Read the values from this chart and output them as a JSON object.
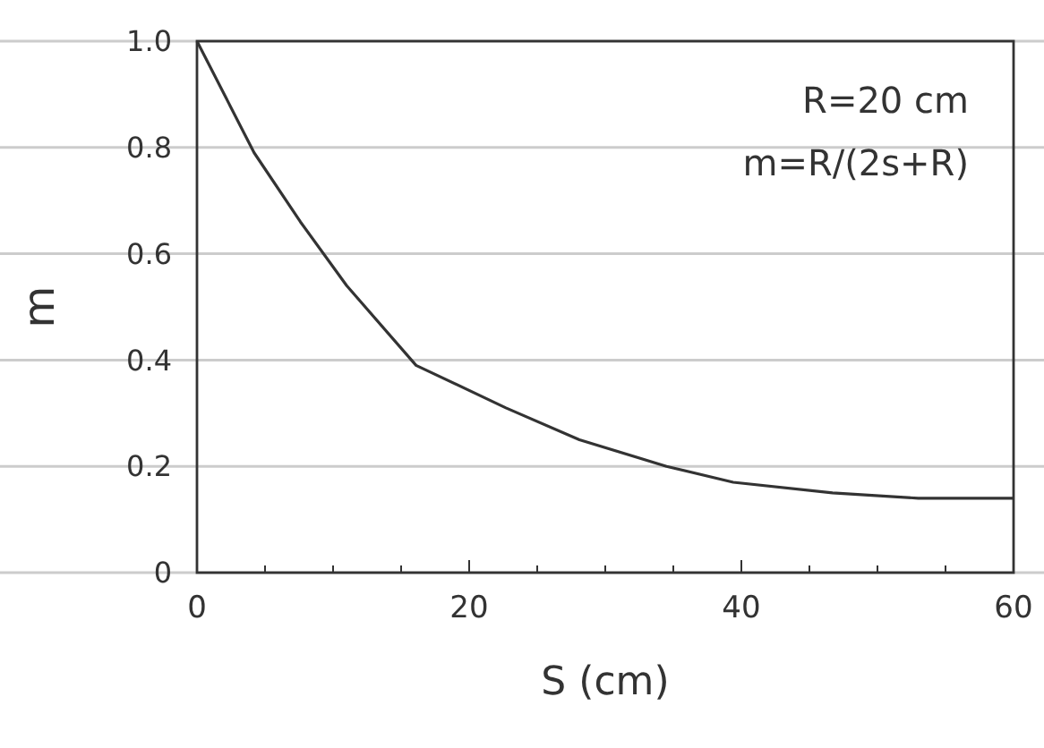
{
  "chart_data": {
    "type": "line",
    "xlabel": "S (cm)",
    "ylabel": "m",
    "annotations": [
      "R=20 cm",
      "m=R/(2s+R)"
    ],
    "x": [
      0,
      4.2,
      7.6,
      11,
      16.1,
      22.7,
      28.1,
      34.5,
      39.4,
      46.7,
      53,
      60
    ],
    "series": [
      {
        "color": "#333333",
        "values": [
          1,
          0.79,
          0.66,
          0.54,
          0.39,
          0.31,
          0.25,
          0.2,
          0.17,
          0.15,
          0.14,
          0.14
        ]
      }
    ],
    "xlim": [
      0,
      60
    ],
    "ylim": [
      0,
      1
    ],
    "xticks": [
      0,
      {
        "value": 5,
        "label": null
      },
      {
        "value": 10,
        "label": null
      },
      {
        "value": 15,
        "label": null
      },
      20,
      {
        "value": 25,
        "label": null
      },
      {
        "value": 30,
        "label": null
      },
      {
        "value": 35,
        "label": null
      },
      40,
      {
        "value": 45,
        "label": null
      },
      {
        "value": 50,
        "label": null
      },
      {
        "value": 55,
        "label": null
      },
      60
    ],
    "yticks": [
      0,
      0.2,
      0.4,
      0.6,
      0.8,
      {
        "value": 1,
        "label": "1.0"
      }
    ],
    "grid": "y",
    "marker": "none",
    "line_style": "solid"
  }
}
